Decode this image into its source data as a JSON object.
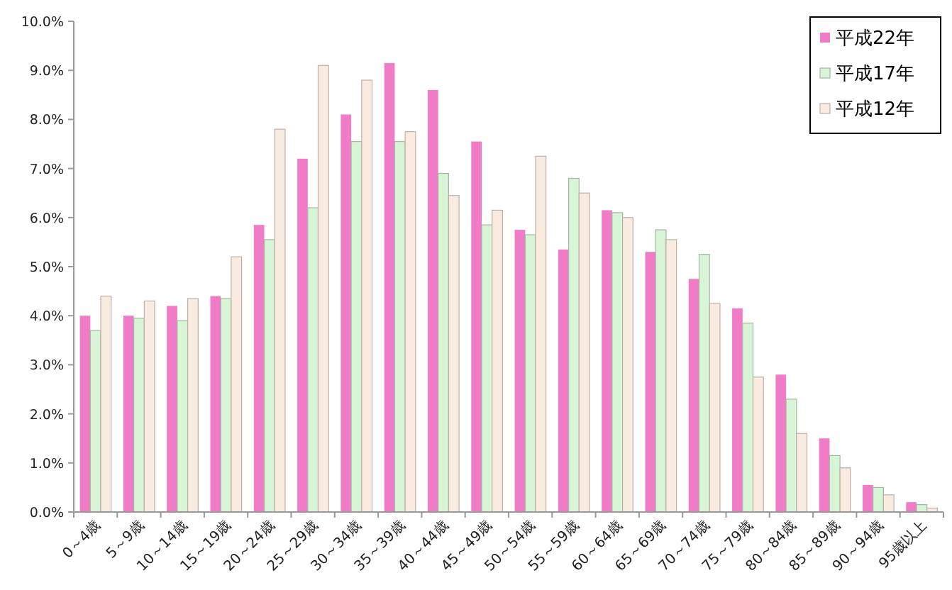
{
  "chart_data": {
    "type": "bar",
    "categories": [
      "0～4歳",
      "5～9歳",
      "10～14歳",
      "15～19歳",
      "20～24歳",
      "25～29歳",
      "30～34歳",
      "35～39歳",
      "40～44歳",
      "45～49歳",
      "50～54歳",
      "55～59歳",
      "60～64歳",
      "65～69歳",
      "70～74歳",
      "75～79歳",
      "80～84歳",
      "85～89歳",
      "90～94歳",
      "95歳以上"
    ],
    "series": [
      {
        "name": "平成22年",
        "color": "#f07cc8",
        "values": [
          4.0,
          4.0,
          4.2,
          4.4,
          5.85,
          7.2,
          8.1,
          9.15,
          8.6,
          7.55,
          5.75,
          5.35,
          6.15,
          5.3,
          4.75,
          4.15,
          2.8,
          1.5,
          0.55,
          0.2
        ]
      },
      {
        "name": "平成17年",
        "color": "#d8f5d8",
        "values": [
          3.7,
          3.95,
          3.9,
          4.35,
          5.55,
          6.2,
          7.55,
          7.55,
          6.9,
          5.85,
          5.65,
          6.8,
          6.1,
          5.75,
          5.25,
          3.85,
          2.3,
          1.15,
          0.5,
          0.15
        ]
      },
      {
        "name": "平成12年",
        "color": "#faebe0",
        "values": [
          4.4,
          4.3,
          4.35,
          5.2,
          7.8,
          9.1,
          8.8,
          7.75,
          6.45,
          6.15,
          7.25,
          6.5,
          6.0,
          5.55,
          4.25,
          2.75,
          1.6,
          0.9,
          0.35,
          0.08
        ]
      }
    ],
    "ylim": [
      0,
      10
    ],
    "yticks": [
      {
        "value": 0,
        "label": "0.0%"
      },
      {
        "value": 1,
        "label": "1.0%"
      },
      {
        "value": 2,
        "label": "2.0%"
      },
      {
        "value": 3,
        "label": "3.0%"
      },
      {
        "value": 4,
        "label": "4.0%"
      },
      {
        "value": 5,
        "label": "5.0%"
      },
      {
        "value": 6,
        "label": "6.0%"
      },
      {
        "value": 7,
        "label": "7.0%"
      },
      {
        "value": 8,
        "label": "8.0%"
      },
      {
        "value": 9,
        "label": "9.0%"
      },
      {
        "value": 10,
        "label": "10.0%"
      }
    ],
    "grid": false,
    "legend": "top right"
  }
}
